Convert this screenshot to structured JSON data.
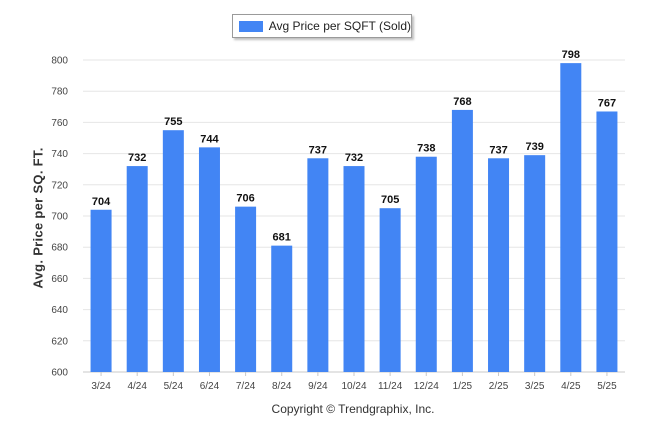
{
  "legend": {
    "label": "Avg Price per SQFT (Sold)"
  },
  "copyright": "Copyright © Trendgraphix, Inc.",
  "colors": {
    "bar": "#4285f4",
    "grid": "#e6e6e6",
    "axis": "#c8c8c8"
  },
  "chart_data": {
    "type": "bar",
    "title": "",
    "xlabel": "",
    "ylabel": "Avg. Price per SQ. FT.",
    "categories": [
      "3/24",
      "4/24",
      "5/24",
      "6/24",
      "7/24",
      "8/24",
      "9/24",
      "10/24",
      "11/24",
      "12/24",
      "1/25",
      "2/25",
      "3/25",
      "4/25",
      "5/25"
    ],
    "series": [
      {
        "name": "Avg Price per SQFT (Sold)",
        "values": [
          704,
          732,
          755,
          744,
          706,
          681,
          737,
          732,
          705,
          738,
          768,
          737,
          739,
          798,
          767
        ]
      }
    ],
    "ylim": [
      600,
      800
    ],
    "yticks": [
      600,
      620,
      640,
      660,
      680,
      700,
      720,
      740,
      760,
      780,
      800
    ],
    "grid": true,
    "legend_position": "top-center",
    "data_labels": true
  }
}
